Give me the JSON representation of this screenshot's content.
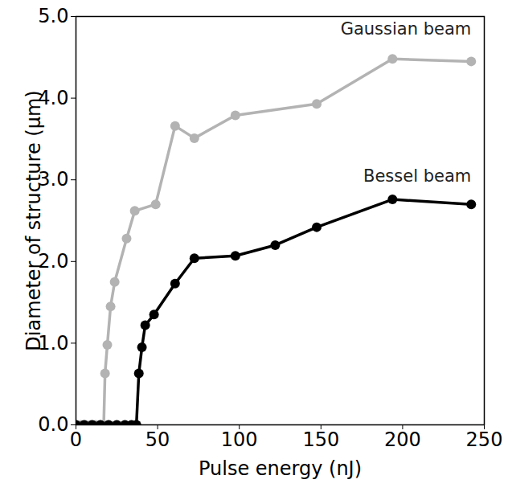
{
  "chart_data": {
    "type": "line",
    "x_label": "Pulse energy (nJ)",
    "y_label": "Diameter of structure (μm)",
    "xlim": [
      0,
      250
    ],
    "xticks": [
      0,
      50,
      100,
      150,
      200,
      250
    ],
    "ylim": [
      0,
      5
    ],
    "yticks": [
      0,
      1,
      2,
      3,
      4,
      5
    ],
    "grid": false,
    "series": [
      {
        "name": "Gaussian beam",
        "color": "#b3b3b3",
        "marker": "circle",
        "line_style": "solid",
        "x": [
          0,
          3,
          6,
          9,
          12,
          15,
          17,
          17.8,
          19.2,
          21.2,
          23.7,
          31,
          36,
          48.8,
          60.7,
          72.5,
          97.6,
          147.4,
          193.8,
          242
        ],
        "values": [
          0,
          0,
          0,
          0,
          0,
          0,
          0,
          0.63,
          0.98,
          1.45,
          1.75,
          2.28,
          2.62,
          2.7,
          3.66,
          3.51,
          3.79,
          3.93,
          4.48,
          4.45
        ]
      },
      {
        "name": "Bessel beam",
        "color": "#000000",
        "marker": "circle",
        "line_style": "solid",
        "x": [
          0,
          5,
          10,
          15,
          20,
          25,
          30,
          34,
          37,
          38.5,
          40.4,
          42.4,
          47.8,
          60.7,
          72.5,
          97.6,
          122,
          147.4,
          193.8,
          242
        ],
        "values": [
          0,
          0,
          0,
          0,
          0,
          0,
          0,
          0,
          0,
          0.63,
          0.95,
          1.22,
          1.35,
          1.73,
          2.04,
          2.07,
          2.2,
          2.42,
          2.76,
          2.7
        ]
      }
    ]
  }
}
